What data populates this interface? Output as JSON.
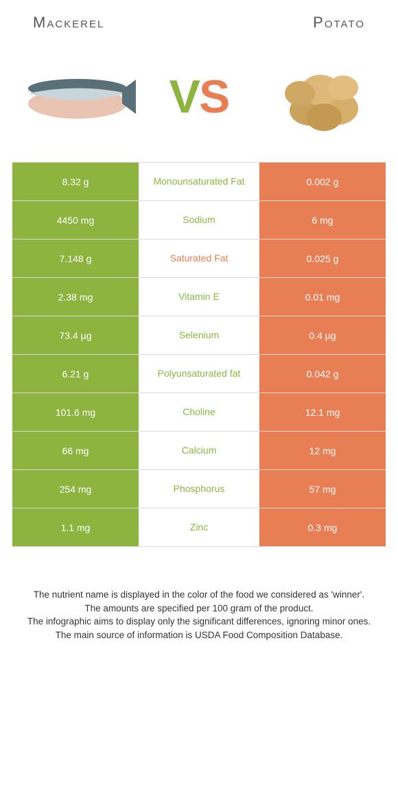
{
  "colors": {
    "food1": "#8eb440",
    "food2": "#e77e54",
    "border": "#d8d8d8",
    "text": "#555555"
  },
  "food1": {
    "name": "Mackerel"
  },
  "food2": {
    "name": "Potato"
  },
  "vs": {
    "letter1": "V",
    "letter2": "S"
  },
  "nutrients": [
    {
      "name": "Monounsaturated Fat",
      "val1": "8.32 g",
      "val2": "0.002 g",
      "winner": 1
    },
    {
      "name": "Sodium",
      "val1": "4450 mg",
      "val2": "6 mg",
      "winner": 1
    },
    {
      "name": "Saturated Fat",
      "val1": "7.148 g",
      "val2": "0.025 g",
      "winner": 2
    },
    {
      "name": "Vitamin E",
      "val1": "2.38 mg",
      "val2": "0.01 mg",
      "winner": 1
    },
    {
      "name": "Selenium",
      "val1": "73.4 µg",
      "val2": "0.4 µg",
      "winner": 1
    },
    {
      "name": "Polyunsaturated fat",
      "val1": "6.21 g",
      "val2": "0.042 g",
      "winner": 1
    },
    {
      "name": "Choline",
      "val1": "101.6 mg",
      "val2": "12.1 mg",
      "winner": 1
    },
    {
      "name": "Calcium",
      "val1": "66 mg",
      "val2": "12 mg",
      "winner": 1
    },
    {
      "name": "Phosphorus",
      "val1": "254 mg",
      "val2": "57 mg",
      "winner": 1
    },
    {
      "name": "Zinc",
      "val1": "1.1 mg",
      "val2": "0.3 mg",
      "winner": 1
    }
  ],
  "footer": {
    "line1": "The nutrient name is displayed in the color of the food we considered as 'winner'.",
    "line2": "The amounts are specified per 100 gram of the product.",
    "line3": "The infographic aims to display only the significant differences, ignoring minor ones.",
    "line4": "The main source of information is USDA Food Composition Database."
  }
}
